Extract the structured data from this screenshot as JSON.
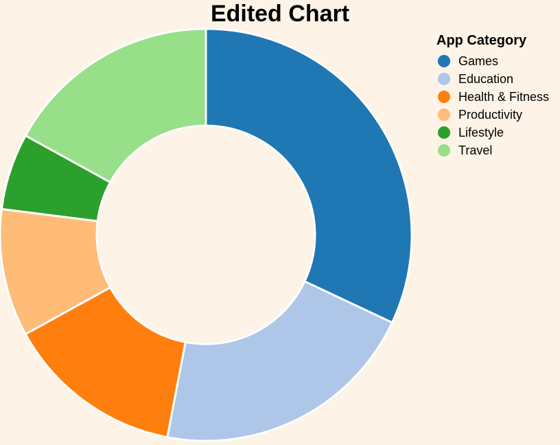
{
  "chart_data": {
    "type": "pie",
    "title": "Edited Chart",
    "legend": {
      "title": "App Category",
      "placement": "top-right"
    },
    "inner_radius_ratio": 0.53,
    "categories": [
      "Games",
      "Education",
      "Health & Fitness",
      "Productivity",
      "Lifestyle",
      "Travel"
    ],
    "values": [
      32,
      21,
      14,
      10,
      6,
      17
    ],
    "colors": [
      "#1f77b4",
      "#aec7e8",
      "#ff7f0e",
      "#ffbb78",
      "#2ca02c",
      "#98df8a"
    ]
  }
}
